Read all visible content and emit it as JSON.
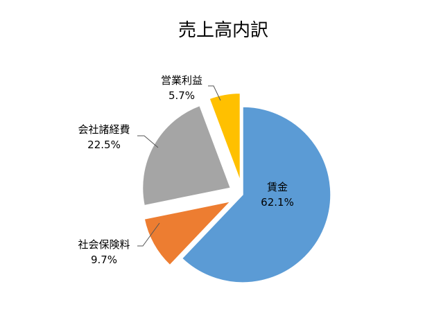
{
  "chart_data": {
    "type": "pie",
    "title": "売上高内訳",
    "start": "top",
    "direction": "clockwise",
    "slices": [
      {
        "label": "賃金",
        "value": 62.1,
        "value_label": "62.1%",
        "color": "#5B9BD5",
        "exploded": false
      },
      {
        "label": "社会保険料",
        "value": 9.7,
        "value_label": "9.7%",
        "color": "#ED7D31",
        "exploded": true
      },
      {
        "label": "会社諸経費",
        "value": 22.5,
        "value_label": "22.5%",
        "color": "#A5A5A5",
        "exploded": true
      },
      {
        "label": "営業利益",
        "value": 5.7,
        "value_label": "5.7%",
        "color": "#FFC000",
        "exploded": true
      }
    ]
  }
}
